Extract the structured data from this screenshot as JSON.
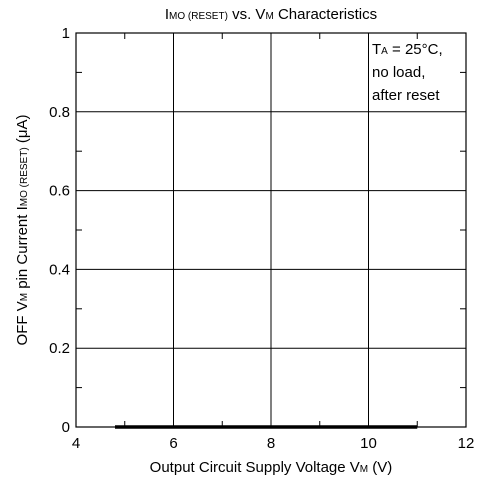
{
  "chart_data": {
    "type": "line",
    "title": [
      "I",
      "MO (RESET)",
      " vs. V",
      "M",
      " Characteristics"
    ],
    "xlabel": [
      "Output Circuit Supply Voltage V",
      "M",
      " (V)"
    ],
    "ylabel": [
      "OFF V",
      "M",
      " pin Current  I",
      "MO (RESET)",
      " (μA)"
    ],
    "annotation": [
      [
        "T",
        "A",
        " = 25°C,"
      ],
      [
        "no load,"
      ],
      [
        "after reset"
      ]
    ],
    "x": [
      4.8,
      11
    ],
    "series": [
      {
        "color": "#000000",
        "values": [
          0,
          0
        ]
      }
    ],
    "xlim": [
      4,
      12
    ],
    "xticks": [
      4,
      6,
      8,
      10,
      12
    ],
    "xminorticks": [
      5,
      7,
      9,
      11
    ],
    "ylim": [
      0,
      1
    ],
    "yticks": [
      0,
      0.2,
      0.4,
      0.6,
      0.8,
      1
    ],
    "yminorticks": [
      0.1,
      0.3,
      0.5,
      0.7,
      0.9
    ],
    "grid": true
  }
}
